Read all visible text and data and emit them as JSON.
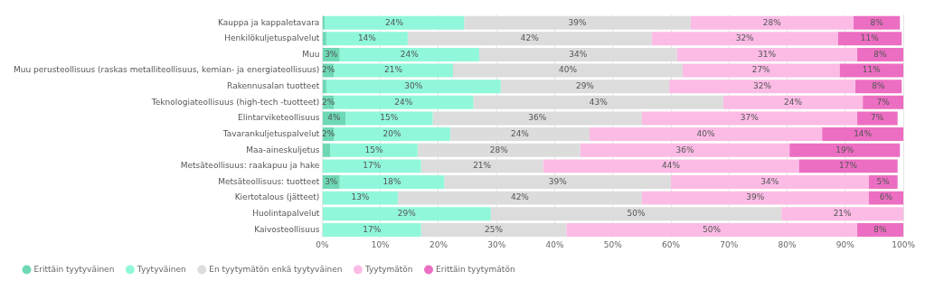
{
  "chart_data": {
    "type": "bar",
    "orientation": "horizontal",
    "stacked": true,
    "categories": [
      "Kauppa ja kappaletavara",
      "Henkilökuljetuspalvelut",
      "Muu",
      "Muu perusteollisuus (raskas metalliteollisuus, kemian- ja energiateollisuus)",
      "Rakennusalan tuotteet",
      "Teknologiateollisuus (high-tech -tuotteet)",
      "Elintarviketeollisuus",
      "Tavarankuljetuspalvelut",
      "Maa-aineskuljetus",
      "Metsäteollisuus: raakapuu ja hake",
      "Metsäteollisuus: tuotteet",
      "Kiertotalous (jätteet)",
      "Huolintapalvelut",
      "Kaivosteollisuus"
    ],
    "series": [
      {
        "name": "Erittäin tyytyväinen",
        "color": "#6ed8b6",
        "values": [
          0.4,
          0.7,
          3,
          2,
          0.7,
          2,
          4,
          2,
          1.4,
          null,
          3,
          null,
          null,
          null
        ],
        "value_labels": [
          null,
          null,
          "3%",
          "2%",
          null,
          "2%",
          "4%",
          "2%",
          null,
          null,
          "3%",
          null,
          null,
          null
        ]
      },
      {
        "name": "Tyytyväinen",
        "color": "#90f7da",
        "values": [
          24,
          14,
          24,
          20.5,
          30,
          24,
          15,
          20,
          15,
          17,
          18,
          13,
          29,
          17
        ],
        "value_labels": [
          "24%",
          "14%",
          "24%",
          "21%",
          "30%",
          "24%",
          "15%",
          "20%",
          "15%",
          "17%",
          "18%",
          "13%",
          "29%",
          "17%"
        ]
      },
      {
        "name": "En tyytymätön enkä tyytyväinen",
        "color": "#dcdcdc",
        "values": [
          39,
          42,
          34,
          39.5,
          29,
          43,
          36,
          24,
          28,
          21,
          39,
          42,
          50,
          25
        ],
        "value_labels": [
          "39%",
          "42%",
          "34%",
          "40%",
          "29%",
          "43%",
          "36%",
          "24%",
          "28%",
          "21%",
          "39%",
          "42%",
          "50%",
          "25%"
        ]
      },
      {
        "name": "Tyytymätön",
        "color": "#fbbbe5",
        "values": [
          28,
          32,
          31,
          27,
          32,
          24,
          37,
          40,
          36,
          44,
          34,
          39,
          21,
          50
        ],
        "value_labels": [
          "28%",
          "32%",
          "31%",
          "27%",
          "32%",
          "24%",
          "37%",
          "40%",
          "36%",
          "44%",
          "34%",
          "39%",
          "21%",
          "50%"
        ]
      },
      {
        "name": "Erittäin tyytymätön",
        "color": "#ec6ec2",
        "values": [
          8,
          11,
          8,
          11,
          8,
          7,
          7,
          14,
          19,
          17,
          5,
          6,
          null,
          8
        ],
        "value_labels": [
          "8%",
          "11%",
          "8%",
          "11%",
          "8%",
          "7%",
          "7%",
          "14%",
          "19%",
          "17%",
          "5%",
          "6%",
          null,
          "8%"
        ]
      }
    ],
    "xlim": [
      0,
      100
    ],
    "xticks": [
      {
        "value": 0,
        "label": "0%"
      },
      {
        "value": 10,
        "label": "10%"
      },
      {
        "value": 20,
        "label": "20%"
      },
      {
        "value": 30,
        "label": "30%"
      },
      {
        "value": 40,
        "label": "40%"
      },
      {
        "value": 50,
        "label": "50%"
      },
      {
        "value": 60,
        "label": "60%"
      },
      {
        "value": 70,
        "label": "70%"
      },
      {
        "value": 80,
        "label": "80%"
      },
      {
        "value": 90,
        "label": "90%"
      },
      {
        "value": 100,
        "label": "100%"
      }
    ],
    "grid": "x",
    "legend": "bottom left",
    "marker": "circle"
  }
}
